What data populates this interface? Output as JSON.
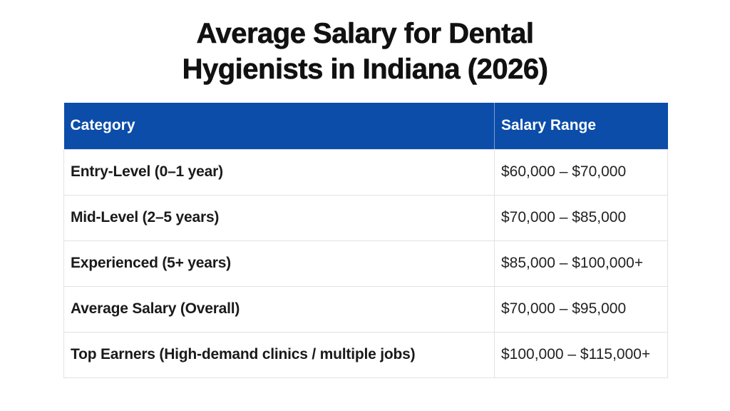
{
  "title": {
    "line1": "Average Salary for Dental",
    "line2": "Hygienists in Indiana (2026)"
  },
  "chart_data": {
    "type": "table",
    "title": "Average Salary for Dental Hygienists in Indiana (2026)",
    "columns": [
      "Category",
      "Salary Range"
    ],
    "rows": [
      [
        "Entry-Level (0–1 year)",
        "$60,000 – $70,000"
      ],
      [
        "Mid-Level (2–5 years)",
        "$70,000 – $85,000"
      ],
      [
        "Experienced (5+ years)",
        "$85,000 – $100,000+"
      ],
      [
        "Average Salary (Overall)",
        "$70,000 – $95,000"
      ],
      [
        "Top Earners (High-demand clinics / multiple jobs)",
        "$100,000 – $115,000+"
      ]
    ],
    "layout": {
      "header_position": "top",
      "grid": true
    }
  },
  "colors": {
    "header_bg": "#0B4DA9",
    "header_text": "#FFFFFF",
    "body_text": "#1A1A1A",
    "border": "#E2E2E2",
    "title_color": "#111111",
    "page_bg": "#FFFFFF"
  }
}
